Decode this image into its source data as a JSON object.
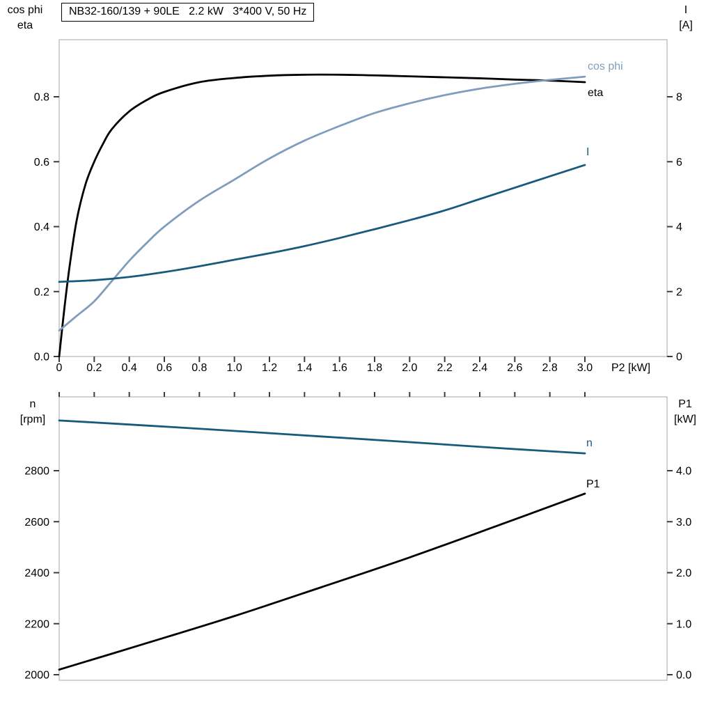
{
  "colors": {
    "black": "#000000",
    "dark_blue": "#185a7d",
    "light_blue": "#7f9dbc",
    "frame": "#a6a6a6",
    "tick": "#3c3c3c"
  },
  "chart_data": [
    {
      "type": "line",
      "title": "NB32-160/139 + 90LE   2.2 kW   3*400 V, 50 Hz",
      "xlabel": "P2 [kW]",
      "ylabel_left": [
        "cos phi",
        "eta"
      ],
      "ylabel_right": [
        "I",
        "[A]"
      ],
      "xlim": [
        0,
        3.47
      ],
      "ylim_left": [
        0,
        0.98
      ],
      "ylim_right": [
        0,
        9.8
      ],
      "grid": false,
      "x_tick_values": [
        0,
        0.2,
        0.4,
        0.6,
        0.8,
        1.0,
        1.2,
        1.4,
        1.6,
        1.8,
        2.0,
        2.2,
        2.4,
        2.6,
        2.8,
        3.0
      ],
      "x_tick_labels": [
        "0",
        "0.2",
        "0.4",
        "0.6",
        "0.8",
        "1.0",
        "1.2",
        "1.4",
        "1.6",
        "1.8",
        "2.0",
        "2.2",
        "2.4",
        "2.6",
        "2.8",
        "3.0"
      ],
      "y_left_tick_values": [
        0,
        0.2,
        0.4,
        0.6,
        0.8
      ],
      "y_left_tick_labels": [
        "0.0",
        "0.2",
        "0.4",
        "0.6",
        "0.8"
      ],
      "y_right_tick_values": [
        0,
        2,
        4,
        6,
        8
      ],
      "y_right_tick_labels": [
        "0",
        "2",
        "4",
        "6",
        "8"
      ],
      "series": [
        {
          "name": "eta",
          "axis": "left",
          "color_key": "black",
          "x": [
            0,
            0.03,
            0.06,
            0.1,
            0.15,
            0.2,
            0.25,
            0.3,
            0.4,
            0.5,
            0.6,
            0.8,
            1.0,
            1.2,
            1.4,
            1.6,
            1.8,
            2.0,
            2.2,
            2.4,
            2.6,
            2.8,
            3.0
          ],
          "y": [
            0,
            0.15,
            0.28,
            0.42,
            0.53,
            0.6,
            0.655,
            0.7,
            0.755,
            0.79,
            0.815,
            0.845,
            0.858,
            0.865,
            0.868,
            0.868,
            0.866,
            0.863,
            0.86,
            0.857,
            0.853,
            0.85,
            0.845
          ]
        },
        {
          "name": "cos phi",
          "axis": "left",
          "color_key": "light_blue",
          "x": [
            0,
            0.1,
            0.2,
            0.3,
            0.4,
            0.5,
            0.6,
            0.8,
            1.0,
            1.2,
            1.4,
            1.6,
            1.8,
            2.0,
            2.2,
            2.4,
            2.6,
            2.8,
            3.0
          ],
          "y": [
            0.08,
            0.125,
            0.17,
            0.232,
            0.295,
            0.35,
            0.4,
            0.48,
            0.545,
            0.61,
            0.665,
            0.71,
            0.75,
            0.78,
            0.805,
            0.825,
            0.84,
            0.852,
            0.862
          ]
        },
        {
          "name": "I",
          "axis": "right",
          "color_key": "dark_blue",
          "x": [
            0,
            0.2,
            0.4,
            0.6,
            0.8,
            1.0,
            1.2,
            1.4,
            1.6,
            1.8,
            2.0,
            2.2,
            2.4,
            2.6,
            2.8,
            3.0
          ],
          "y": [
            2.3,
            2.35,
            2.45,
            2.6,
            2.78,
            2.98,
            3.18,
            3.4,
            3.65,
            3.92,
            4.2,
            4.5,
            4.85,
            5.2,
            5.55,
            5.9
          ]
        }
      ],
      "curve_labels": [
        {
          "text": "cos phi",
          "color_key": "light_blue"
        },
        {
          "text": "eta",
          "color_key": "black"
        },
        {
          "text": "I",
          "color_key": "dark_blue"
        }
      ]
    },
    {
      "type": "line",
      "xlabel": "",
      "ylabel_left": [
        "n",
        "[rpm]"
      ],
      "ylabel_right": [
        "P1",
        "[kW]"
      ],
      "xlim": [
        0,
        3.47
      ],
      "ylim_left": [
        1978,
        3090
      ],
      "ylim_right": [
        -0.1,
        5.45
      ],
      "grid": false,
      "x_tick_values": [
        0,
        0.2,
        0.4,
        0.6,
        0.8,
        1.0,
        1.2,
        1.4,
        1.6,
        1.8,
        2.0,
        2.2,
        2.4,
        2.6,
        2.8,
        3.0
      ],
      "y_left_tick_values": [
        2000,
        2200,
        2400,
        2600,
        2800
      ],
      "y_left_tick_labels": [
        "2000",
        "2200",
        "2400",
        "2600",
        "2800"
      ],
      "y_right_tick_values": [
        0,
        1,
        2,
        3,
        4
      ],
      "y_right_tick_labels": [
        "0.0",
        "1.0",
        "2.0",
        "3.0",
        "4.0"
      ],
      "series": [
        {
          "name": "n",
          "axis": "left",
          "color_key": "dark_blue",
          "x": [
            0,
            0.5,
            1.0,
            1.5,
            2.0,
            2.5,
            3.0
          ],
          "y": [
            2997,
            2977,
            2956,
            2934,
            2912,
            2889,
            2868
          ]
        },
        {
          "name": "P1",
          "axis": "right",
          "color_key": "black",
          "x": [
            0,
            0.5,
            1.0,
            1.5,
            2.0,
            2.5,
            3.0
          ],
          "y": [
            0.1,
            0.62,
            1.15,
            1.72,
            2.3,
            2.92,
            3.55
          ]
        }
      ],
      "curve_labels": [
        {
          "text": "n",
          "color_key": "dark_blue"
        },
        {
          "text": "P1",
          "color_key": "black"
        }
      ]
    }
  ]
}
